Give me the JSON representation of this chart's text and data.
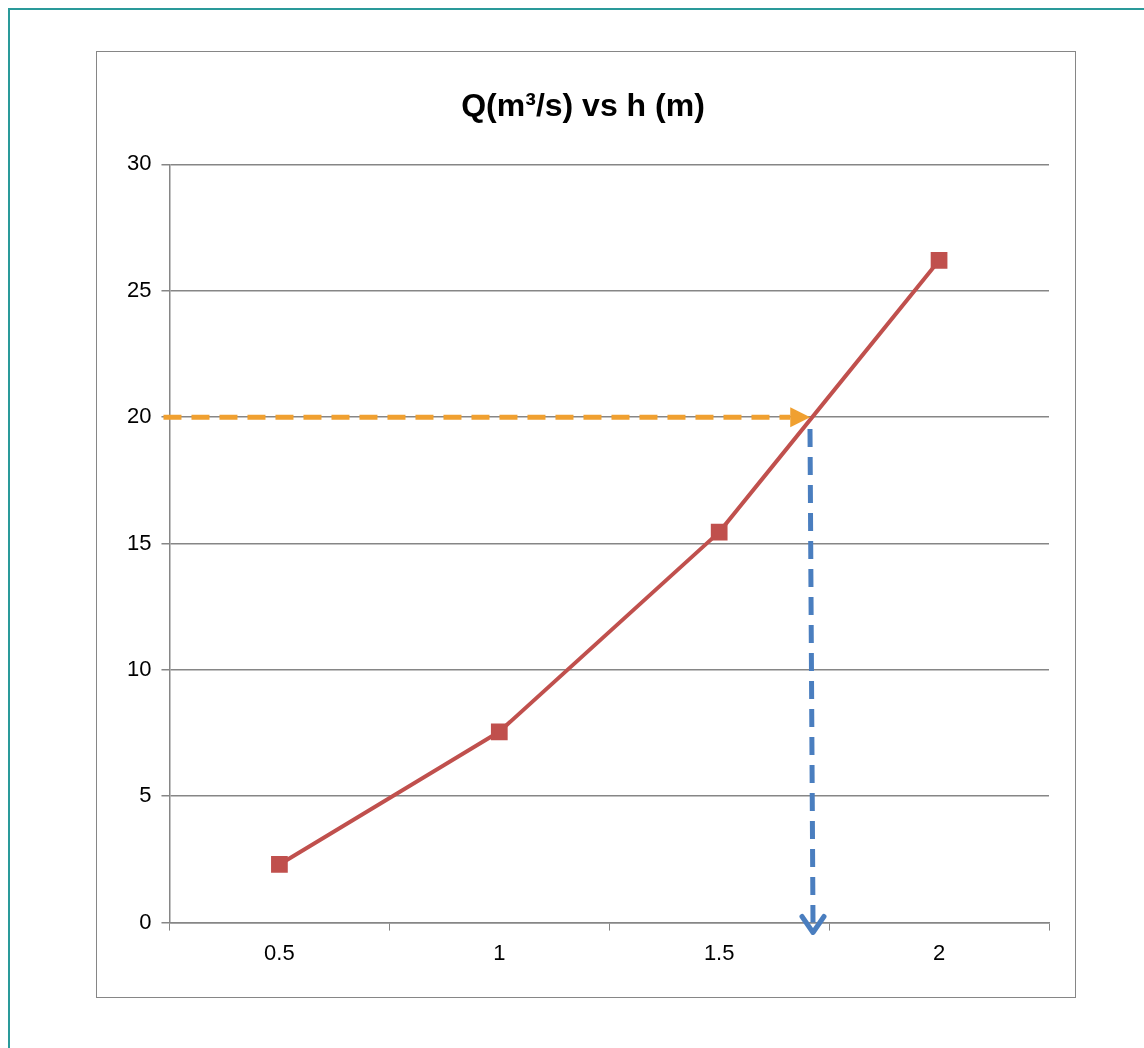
{
  "chart_data": {
    "type": "line",
    "title": "Q(m³/s) vs h (m)",
    "categories": [
      "0.5",
      "1",
      "1.5",
      "2"
    ],
    "series": [
      {
        "color": "#c0504d",
        "values": [
          2.3,
          7.55,
          15.45,
          26.2
        ]
      }
    ],
    "ylim": [
      0,
      30
    ],
    "yticks": [
      0,
      5,
      10,
      15,
      20,
      25,
      30
    ],
    "grid": "y",
    "legend": false,
    "marker": "square",
    "line_style": "solid",
    "ref_lines": [
      {
        "axis": "y",
        "value": 20,
        "color": "#f0a030",
        "line_style": "dashed"
      }
    ]
  }
}
